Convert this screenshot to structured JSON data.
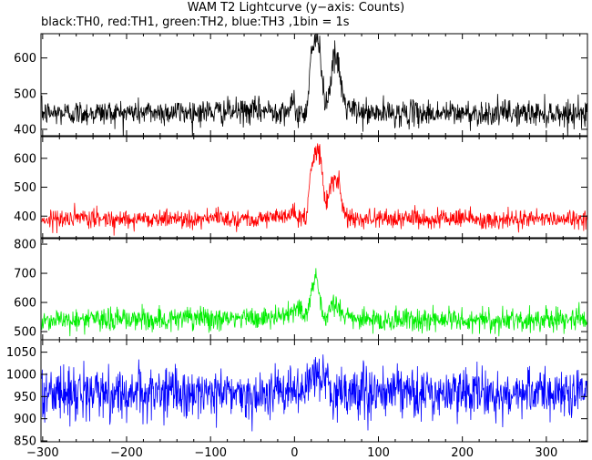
{
  "chart_data": {
    "type": "line",
    "title": "WAM T2 Lightcurve (y−axis: Counts)",
    "subtitle": "black:TH0, red:TH1, green:TH2, blue:TH3 ,1bin = 1s",
    "xlabel": "",
    "ylabel": "",
    "xlim": [
      -302,
      349
    ],
    "x_ticks": [
      -300,
      -200,
      -100,
      0,
      100,
      200,
      300
    ],
    "x_tick_labels": [
      "−300",
      "−200",
      "−100",
      "0",
      "100",
      "200",
      "300"
    ],
    "grid": false,
    "series": [
      {
        "name": "TH0",
        "color": "#000000",
        "ylim": [
          382,
          668
        ],
        "y_ticks": [
          400,
          500,
          600
        ],
        "baseline": 445,
        "noise_sd": 18,
        "profile": [
          [
            -300,
            445
          ],
          [
            -60,
            450
          ],
          [
            -5,
            455
          ],
          [
            0,
            475
          ],
          [
            2,
            445
          ],
          [
            14,
            445
          ],
          [
            17,
            525
          ],
          [
            19,
            610
          ],
          [
            25,
            650
          ],
          [
            31,
            625
          ],
          [
            34,
            525
          ],
          [
            37,
            470
          ],
          [
            41,
            500
          ],
          [
            44,
            560
          ],
          [
            48,
            600
          ],
          [
            53,
            575
          ],
          [
            57,
            500
          ],
          [
            62,
            460
          ],
          [
            80,
            445
          ],
          [
            349,
            445
          ]
        ]
      },
      {
        "name": "TH1",
        "color": "#ff0000",
        "ylim": [
          322,
          675
        ],
        "y_ticks": [
          400,
          500,
          600
        ],
        "baseline": 390,
        "noise_sd": 16,
        "profile": [
          [
            -300,
            390
          ],
          [
            -60,
            392
          ],
          [
            -5,
            398
          ],
          [
            0,
            425
          ],
          [
            2,
            395
          ],
          [
            14,
            392
          ],
          [
            17,
            480
          ],
          [
            19,
            560
          ],
          [
            25,
            625
          ],
          [
            31,
            610
          ],
          [
            34,
            520
          ],
          [
            37,
            450
          ],
          [
            41,
            465
          ],
          [
            44,
            500
          ],
          [
            48,
            530
          ],
          [
            53,
            510
          ],
          [
            57,
            440
          ],
          [
            62,
            400
          ],
          [
            80,
            392
          ],
          [
            349,
            390
          ]
        ]
      },
      {
        "name": "TH2",
        "color": "#00ee00",
        "ylim": [
          472,
          822
        ],
        "y_ticks": [
          500,
          600,
          700,
          800
        ],
        "baseline": 540,
        "noise_sd": 20,
        "profile": [
          [
            -300,
            540
          ],
          [
            -40,
            545
          ],
          [
            -8,
            555
          ],
          [
            0,
            580
          ],
          [
            5,
            595
          ],
          [
            10,
            560
          ],
          [
            15,
            560
          ],
          [
            19,
            620
          ],
          [
            24,
            680
          ],
          [
            28,
            650
          ],
          [
            31,
            610
          ],
          [
            34,
            550
          ],
          [
            40,
            560
          ],
          [
            45,
            590
          ],
          [
            50,
            585
          ],
          [
            55,
            570
          ],
          [
            65,
            550
          ],
          [
            80,
            540
          ],
          [
            349,
            540
          ]
        ]
      },
      {
        "name": "TH3",
        "color": "#0000ff",
        "ylim": [
          848,
          1078
        ],
        "y_ticks": [
          850,
          900,
          950,
          1000,
          1050
        ],
        "baseline": 958,
        "noise_sd": 28,
        "profile": [
          [
            -300,
            958
          ],
          [
            -5,
            958
          ],
          [
            10,
            965
          ],
          [
            20,
            990
          ],
          [
            26,
            1000
          ],
          [
            32,
            985
          ],
          [
            45,
            965
          ],
          [
            60,
            958
          ],
          [
            349,
            958
          ]
        ]
      }
    ]
  }
}
